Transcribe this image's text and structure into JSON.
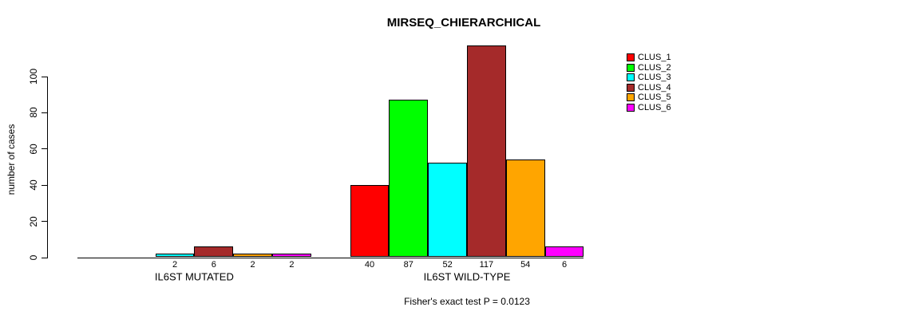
{
  "chart_data": {
    "type": "bar",
    "title": "MIRSEQ_CHIERARCHICAL",
    "ylabel": "number of cases",
    "xlabel": "",
    "note": "Fisher's exact test P = 0.0123",
    "ylim": [
      0,
      100
    ],
    "yticks": [
      0,
      20,
      40,
      60,
      80,
      100
    ],
    "grid": false,
    "legend_position": "right-outside",
    "bar_value_labels": "shown under each nonzero bar",
    "categories": [
      "IL6ST MUTATED",
      "IL6ST WILD-TYPE"
    ],
    "series": [
      {
        "name": "CLUS_1",
        "color": "#FF0000",
        "values": [
          0,
          40
        ]
      },
      {
        "name": "CLUS_2",
        "color": "#00FF00",
        "values": [
          0,
          87
        ]
      },
      {
        "name": "CLUS_3",
        "color": "#00FFFF",
        "values": [
          2,
          52
        ]
      },
      {
        "name": "CLUS_4",
        "color": "#A52A2A",
        "values": [
          6,
          117
        ]
      },
      {
        "name": "CLUS_5",
        "color": "#FFA500",
        "values": [
          2,
          54
        ]
      },
      {
        "name": "CLUS_6",
        "color": "#FF00FF",
        "values": [
          2,
          6
        ]
      }
    ],
    "colors": {
      "background": "#FFFFFF",
      "axis": "#000000",
      "text": "#000000"
    }
  }
}
